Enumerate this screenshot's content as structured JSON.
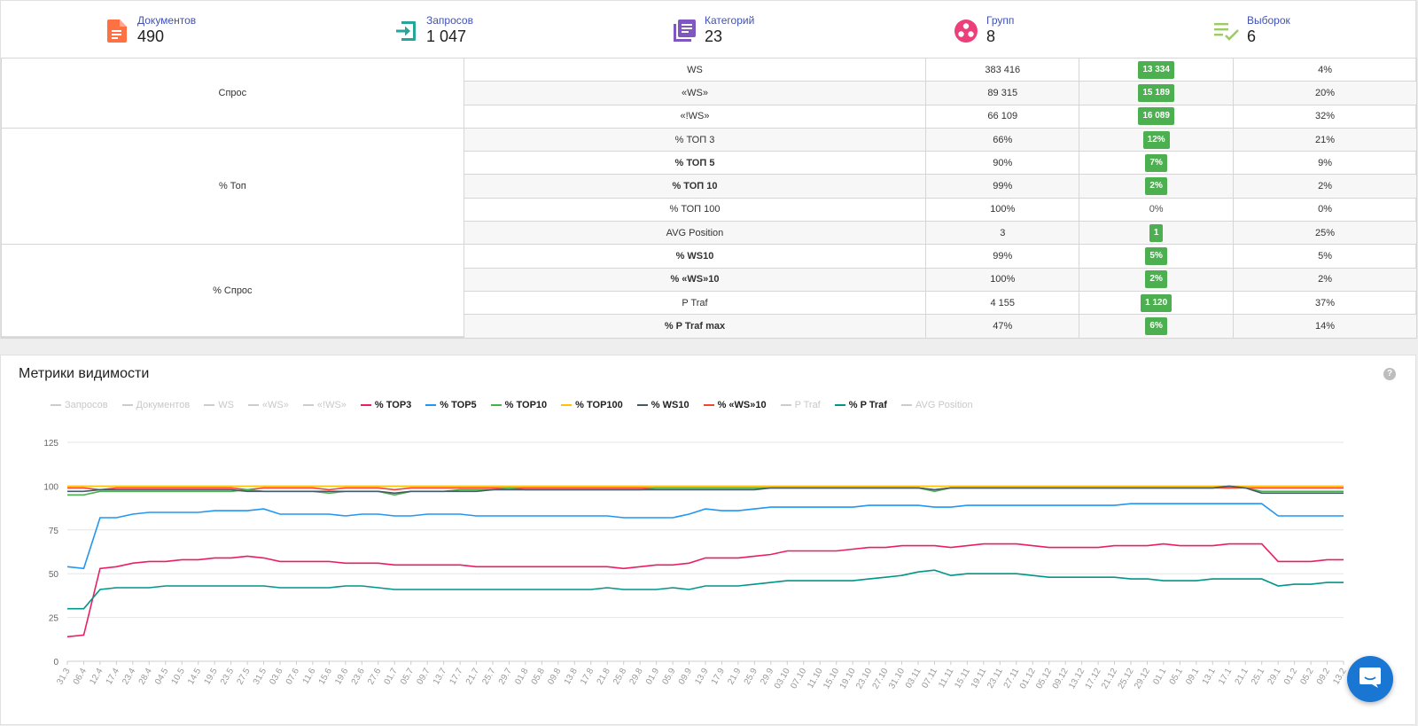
{
  "stats": [
    {
      "label": "Документов",
      "value": "490",
      "icon": "document-icon",
      "color": "#ff7043"
    },
    {
      "label": "Запросов",
      "value": "1 047",
      "icon": "login-icon",
      "color": "#26a69a"
    },
    {
      "label": "Категорий",
      "value": "23",
      "icon": "library-icon",
      "color": "#7e57c2"
    },
    {
      "label": "Групп",
      "value": "8",
      "icon": "groups-icon",
      "color": "#ec407a"
    },
    {
      "label": "Выборок",
      "value": "6",
      "icon": "playlist-check-icon",
      "color": "#9ccc65"
    }
  ],
  "table": {
    "groups": [
      {
        "name": "Спрос",
        "rows": [
          {
            "metric": "WS",
            "bold": false,
            "value": "383 416",
            "diff": "13 334",
            "badge": true,
            "pct": "4%"
          },
          {
            "metric": "«WS»",
            "bold": false,
            "value": "89 315",
            "diff": "15 189",
            "badge": true,
            "pct": "20%"
          },
          {
            "metric": "«!WS»",
            "bold": false,
            "value": "66 109",
            "diff": "16 089",
            "badge": true,
            "pct": "32%"
          }
        ]
      },
      {
        "name": "% Топ",
        "rows": [
          {
            "metric": "% ТОП 3",
            "bold": false,
            "value": "66%",
            "diff": "12%",
            "badge": true,
            "pct": "21%"
          },
          {
            "metric": "% ТОП 5",
            "bold": true,
            "value": "90%",
            "diff": "7%",
            "badge": true,
            "pct": "9%"
          },
          {
            "metric": "% ТОП 10",
            "bold": true,
            "value": "99%",
            "diff": "2%",
            "badge": true,
            "pct": "2%"
          },
          {
            "metric": "% ТОП 100",
            "bold": false,
            "value": "100%",
            "diff": "0%",
            "badge": false,
            "pct": "0%"
          },
          {
            "metric": "AVG Position",
            "bold": false,
            "value": "3",
            "diff": "1",
            "badge": true,
            "pct": "25%"
          }
        ]
      },
      {
        "name": "% Спрос",
        "rows": [
          {
            "metric": "% WS10",
            "bold": true,
            "value": "99%",
            "diff": "5%",
            "badge": true,
            "pct": "5%"
          },
          {
            "metric": "% «WS»10",
            "bold": true,
            "value": "100%",
            "diff": "2%",
            "badge": true,
            "pct": "2%"
          },
          {
            "metric": "P Traf",
            "bold": false,
            "value": "4 155",
            "diff": "1 120",
            "badge": true,
            "pct": "37%"
          },
          {
            "metric": "% P Traf max",
            "bold": true,
            "value": "47%",
            "diff": "6%",
            "badge": true,
            "pct": "14%"
          }
        ]
      }
    ]
  },
  "chart_card": {
    "title": "Метрики видимости",
    "help": "?"
  },
  "legend": [
    {
      "name": "Запросов",
      "active": false,
      "color": "#cccccc"
    },
    {
      "name": "Документов",
      "active": false,
      "color": "#cccccc"
    },
    {
      "name": "WS",
      "active": false,
      "color": "#cccccc"
    },
    {
      "name": "«WS»",
      "active": false,
      "color": "#cccccc"
    },
    {
      "name": "«!WS»",
      "active": false,
      "color": "#cccccc"
    },
    {
      "name": "% TOP3",
      "active": true,
      "color": "#e91e63"
    },
    {
      "name": "% TOP5",
      "active": true,
      "color": "#2196f3"
    },
    {
      "name": "% TOP10",
      "active": true,
      "color": "#4caf50"
    },
    {
      "name": "% TOP100",
      "active": true,
      "color": "#ffc107"
    },
    {
      "name": "% WS10",
      "active": true,
      "color": "#455a64"
    },
    {
      "name": "% «WS»10",
      "active": true,
      "color": "#f44336"
    },
    {
      "name": "P Traf",
      "active": false,
      "color": "#cccccc"
    },
    {
      "name": "% P Traf",
      "active": true,
      "color": "#009688"
    },
    {
      "name": "AVG Position",
      "active": false,
      "color": "#cccccc"
    }
  ],
  "chart_data": {
    "type": "line",
    "title": "Метрики видимости",
    "ylim": [
      0,
      125
    ],
    "yticks": [
      0,
      25,
      50,
      75,
      100,
      125
    ],
    "grid": true,
    "legend_position": "top",
    "x": [
      "31.3",
      "06.4",
      "12.4",
      "17.4",
      "23.4",
      "28.4",
      "04.5",
      "10.5",
      "14.5",
      "19.5",
      "23.5",
      "27.5",
      "31.5",
      "03.6",
      "07.6",
      "11.6",
      "15.6",
      "19.6",
      "23.6",
      "27.6",
      "01.7",
      "05.7",
      "09.7",
      "13.7",
      "17.7",
      "21.7",
      "25.7",
      "29.7",
      "01.8",
      "05.8",
      "09.8",
      "13.8",
      "17.8",
      "21.8",
      "25.8",
      "29.8",
      "01.9",
      "05.9",
      "09.9",
      "13.9",
      "17.9",
      "21.9",
      "25.9",
      "29.9",
      "03.10",
      "07.10",
      "11.10",
      "15.10",
      "19.10",
      "23.10",
      "27.10",
      "31.10",
      "03.11",
      "07.11",
      "11.11",
      "15.11",
      "19.11",
      "23.11",
      "27.11",
      "01.12",
      "05.12",
      "09.12",
      "13.12",
      "17.12",
      "21.12",
      "25.12",
      "29.12",
      "01.1",
      "05.1",
      "09.1",
      "13.1",
      "17.1",
      "21.1",
      "25.1",
      "29.1",
      "01.2",
      "05.2",
      "09.2",
      "13.2"
    ],
    "series": [
      {
        "name": "% TOP100",
        "color": "#ffc107",
        "values": [
          100,
          100,
          100,
          100,
          100,
          100,
          100,
          100,
          100,
          100,
          100,
          100,
          100,
          100,
          100,
          100,
          100,
          100,
          100,
          100,
          100,
          100,
          100,
          100,
          100,
          100,
          100,
          100,
          100,
          100,
          100,
          100,
          100,
          100,
          100,
          100,
          100,
          100,
          100,
          100,
          100,
          100,
          100,
          100,
          100,
          100,
          100,
          100,
          100,
          100,
          100,
          100,
          100,
          100,
          100,
          100,
          100,
          100,
          100,
          100,
          100,
          100,
          100,
          100,
          100,
          100,
          100,
          100,
          100,
          100,
          100,
          100,
          100,
          100,
          100,
          100,
          100,
          100,
          100
        ]
      },
      {
        "name": "% «WS»10",
        "color": "#f44336",
        "values": [
          99,
          99,
          98,
          99,
          99,
          99,
          99,
          99,
          99,
          99,
          99,
          98,
          99,
          99,
          99,
          99,
          98,
          99,
          99,
          99,
          98,
          99,
          99,
          99,
          99,
          99,
          99,
          99,
          99,
          99,
          99,
          99,
          99,
          99,
          99,
          99,
          99,
          99,
          99,
          99,
          99,
          99,
          99,
          99,
          99,
          99,
          99,
          99,
          99,
          99,
          99,
          99,
          99,
          98,
          99,
          99,
          99,
          99,
          99,
          99,
          99,
          99,
          99,
          99,
          99,
          99,
          99,
          99,
          99,
          99,
          99,
          99,
          99,
          99,
          99,
          99,
          99,
          99,
          99
        ]
      },
      {
        "name": "% TOP10",
        "color": "#4caf50",
        "values": [
          95,
          95,
          97,
          97,
          97,
          97,
          97,
          97,
          97,
          97,
          97,
          98,
          97,
          97,
          97,
          97,
          96,
          97,
          97,
          97,
          95,
          97,
          97,
          97,
          98,
          98,
          98,
          99,
          98,
          98,
          98,
          98,
          98,
          98,
          98,
          98,
          99,
          99,
          99,
          99,
          99,
          99,
          99,
          99,
          99,
          99,
          99,
          99,
          99,
          99,
          99,
          99,
          99,
          97,
          99,
          99,
          99,
          99,
          99,
          99,
          99,
          99,
          99,
          99,
          99,
          99,
          99,
          99,
          99,
          99,
          99,
          100,
          99,
          97,
          97,
          97,
          97,
          97,
          97
        ]
      },
      {
        "name": "% WS10",
        "color": "#455a64",
        "values": [
          97,
          97,
          98,
          98,
          98,
          98,
          98,
          98,
          98,
          98,
          98,
          97,
          97,
          97,
          97,
          97,
          97,
          97,
          97,
          97,
          96,
          97,
          97,
          97,
          97,
          97,
          98,
          98,
          98,
          98,
          98,
          98,
          98,
          98,
          98,
          98,
          98,
          98,
          98,
          98,
          98,
          98,
          98,
          99,
          99,
          99,
          99,
          99,
          99,
          99,
          99,
          99,
          99,
          98,
          99,
          99,
          99,
          99,
          99,
          99,
          99,
          99,
          99,
          99,
          99,
          99,
          99,
          99,
          99,
          99,
          99,
          100,
          99,
          96,
          96,
          96,
          96,
          96,
          96
        ]
      },
      {
        "name": "% TOP5",
        "color": "#2196f3",
        "values": [
          54,
          53,
          82,
          82,
          84,
          85,
          85,
          85,
          85,
          86,
          86,
          86,
          87,
          84,
          84,
          84,
          84,
          83,
          84,
          84,
          83,
          83,
          84,
          84,
          84,
          83,
          83,
          83,
          83,
          83,
          83,
          83,
          83,
          83,
          82,
          82,
          82,
          82,
          84,
          87,
          86,
          86,
          87,
          88,
          88,
          88,
          88,
          88,
          88,
          89,
          89,
          89,
          89,
          88,
          88,
          89,
          89,
          89,
          89,
          89,
          89,
          89,
          89,
          89,
          89,
          90,
          90,
          90,
          90,
          90,
          90,
          90,
          90,
          90,
          83,
          83,
          83,
          83,
          83
        ]
      },
      {
        "name": "% TOP3",
        "color": "#e91e63",
        "values": [
          14,
          15,
          53,
          54,
          56,
          57,
          57,
          58,
          58,
          59,
          59,
          60,
          59,
          57,
          57,
          57,
          57,
          56,
          56,
          56,
          55,
          55,
          55,
          55,
          55,
          54,
          54,
          54,
          54,
          54,
          54,
          54,
          54,
          54,
          53,
          54,
          55,
          55,
          56,
          59,
          59,
          59,
          60,
          61,
          63,
          63,
          63,
          63,
          64,
          65,
          65,
          66,
          66,
          66,
          65,
          66,
          67,
          67,
          67,
          66,
          65,
          65,
          65,
          65,
          66,
          66,
          66,
          67,
          66,
          66,
          66,
          67,
          67,
          67,
          57,
          57,
          57,
          58,
          58
        ]
      },
      {
        "name": "% P Traf",
        "color": "#009688",
        "values": [
          30,
          30,
          41,
          42,
          42,
          42,
          43,
          43,
          43,
          43,
          43,
          43,
          43,
          42,
          42,
          42,
          42,
          43,
          43,
          42,
          41,
          41,
          41,
          41,
          41,
          41,
          41,
          41,
          41,
          41,
          41,
          41,
          41,
          42,
          41,
          41,
          41,
          42,
          41,
          43,
          43,
          43,
          44,
          45,
          46,
          46,
          46,
          46,
          46,
          47,
          48,
          49,
          51,
          52,
          49,
          50,
          50,
          50,
          50,
          49,
          48,
          48,
          48,
          48,
          48,
          47,
          47,
          46,
          46,
          46,
          47,
          47,
          47,
          47,
          43,
          44,
          44,
          45,
          45
        ]
      }
    ]
  },
  "chat_button_icon": "chat-icon"
}
